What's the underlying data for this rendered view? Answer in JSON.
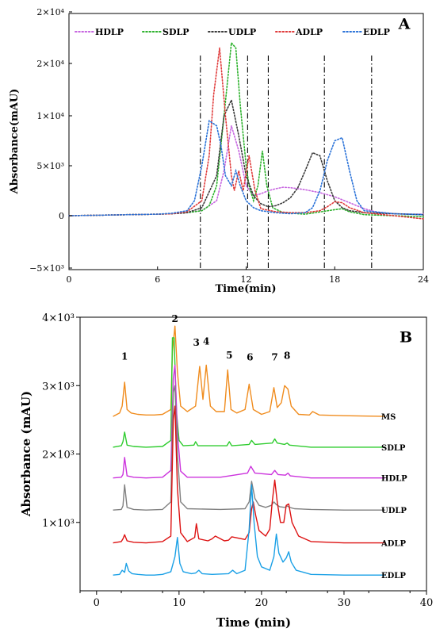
{
  "chart_data": [
    {
      "type": "line",
      "panel": "A",
      "xlabel": "Time(min)",
      "ylabel": "Absorbance(mAU)",
      "xlim": [
        0,
        24
      ],
      "ylim": [
        -5000,
        20000
      ],
      "x_ticks": [
        0,
        6,
        12,
        18,
        24
      ],
      "x_tick_labels": [
        "0",
        "6",
        "12",
        "18",
        "24"
      ],
      "y_ticks": [
        -5000,
        0,
        5000,
        10000,
        15000,
        20000
      ],
      "y_tick_labels": [
        "−5×10³",
        "0",
        "5×10³",
        "1×10⁴",
        "2×10⁴",
        "2×10⁴"
      ],
      "line_style": "dotted",
      "legend_position": "top-left",
      "cut_lines_x": [
        8.9,
        12.1,
        13.5,
        17.3,
        20.5
      ],
      "series": [
        {
          "name": "HDLP",
          "color": "#c766e0",
          "x": [
            0,
            2,
            4,
            6,
            7,
            8,
            9,
            10,
            10.5,
            11,
            11.5,
            12,
            12.5,
            13,
            13.5,
            14,
            14.5,
            15,
            16,
            17,
            18,
            19,
            20,
            21,
            22,
            23,
            24
          ],
          "y": [
            0,
            50,
            100,
            150,
            200,
            300,
            500,
            1500,
            4500,
            9000,
            6500,
            3000,
            2000,
            2200,
            2500,
            2700,
            2850,
            2800,
            2600,
            2300,
            1900,
            1300,
            700,
            300,
            200,
            150,
            150
          ]
        },
        {
          "name": "SDLP",
          "color": "#2db22d",
          "x": [
            0,
            2,
            4,
            6,
            7,
            8,
            9,
            9.5,
            10,
            10.5,
            11,
            11.3,
            11.6,
            12,
            12.2,
            12.5,
            12.8,
            13.1,
            13.4,
            13.8,
            14.5,
            16,
            18,
            18.5,
            19,
            20,
            22,
            24
          ],
          "y": [
            0,
            50,
            100,
            150,
            200,
            300,
            500,
            1000,
            3000,
            10000,
            17000,
            16500,
            11000,
            5000,
            3000,
            1500,
            3000,
            6500,
            3000,
            800,
            300,
            150,
            600,
            700,
            400,
            100,
            0,
            -100
          ]
        },
        {
          "name": "UDLP",
          "color": "#3a3a3a",
          "x": [
            0,
            2,
            4,
            6,
            7,
            8,
            9,
            10,
            10.5,
            11,
            11.5,
            12,
            12.5,
            13,
            13.5,
            14,
            14.5,
            15,
            15.5,
            16,
            16.5,
            17,
            17.5,
            18,
            18.5,
            19,
            20,
            22,
            24
          ],
          "y": [
            0,
            50,
            100,
            150,
            200,
            300,
            800,
            4000,
            10000,
            11500,
            8000,
            4000,
            2000,
            1200,
            900,
            1000,
            1300,
            1800,
            2800,
            4500,
            6300,
            6000,
            3500,
            1500,
            800,
            500,
            300,
            200,
            100
          ]
        },
        {
          "name": "ADLP",
          "color": "#e03a3a",
          "x": [
            0,
            2,
            4,
            6,
            7,
            8,
            9,
            9.5,
            9.8,
            10.2,
            10.6,
            11,
            11.2,
            11.5,
            11.8,
            12.2,
            12.6,
            13,
            14,
            15,
            16,
            17,
            17.5,
            18,
            18.5,
            19,
            20,
            22,
            24
          ],
          "y": [
            0,
            50,
            100,
            150,
            200,
            400,
            1500,
            6000,
            12000,
            16500,
            10000,
            4000,
            2500,
            4500,
            2500,
            6000,
            2500,
            700,
            400,
            300,
            300,
            500,
            900,
            1400,
            1300,
            800,
            300,
            0,
            -300
          ]
        },
        {
          "name": "EDLP",
          "color": "#2a72d8",
          "x": [
            0,
            2,
            4,
            6,
            7,
            8,
            8.5,
            9,
            9.5,
            10,
            10.3,
            10.6,
            11,
            11.3,
            11.6,
            12,
            12.5,
            13,
            14,
            15,
            16,
            16.5,
            17,
            17.5,
            18,
            18.5,
            19,
            19.5,
            20,
            22,
            24
          ],
          "y": [
            0,
            50,
            100,
            150,
            250,
            500,
            1500,
            5000,
            9500,
            9000,
            7000,
            4000,
            3000,
            4500,
            3000,
            1500,
            800,
            500,
            300,
            200,
            300,
            800,
            2500,
            5500,
            7500,
            7800,
            4500,
            1500,
            500,
            200,
            100
          ]
        }
      ]
    },
    {
      "type": "line",
      "panel": "B",
      "xlabel": "Time (min)",
      "ylabel": "Absorbance (mAU)",
      "xlim": [
        -2,
        40
      ],
      "ylim": [
        0,
        4000
      ],
      "x_ticks": [
        0,
        10,
        20,
        30,
        40
      ],
      "x_tick_labels": [
        "0",
        "10",
        "20",
        "30",
        "40"
      ],
      "y_ticks": [
        1000,
        2000,
        3000,
        4000
      ],
      "y_tick_labels": [
        "1×10³",
        "2×10³",
        "3×10³",
        "4×10³"
      ],
      "line_style": "solid",
      "peak_labels": [
        {
          "label": "1",
          "x": 3.4,
          "y": 3380
        },
        {
          "label": "2",
          "x": 9.5,
          "y": 3930
        },
        {
          "label": "3",
          "x": 12.1,
          "y": 3580
        },
        {
          "label": "4",
          "x": 13.3,
          "y": 3600
        },
        {
          "label": "5",
          "x": 16.1,
          "y": 3400
        },
        {
          "label": "6",
          "x": 18.6,
          "y": 3370
        },
        {
          "label": "7",
          "x": 21.6,
          "y": 3370
        },
        {
          "label": "8",
          "x": 23.1,
          "y": 3390
        }
      ],
      "series": [
        {
          "name": "MS",
          "color": "#f08c1e",
          "x": [
            2,
            2.8,
            3.1,
            3.4,
            3.7,
            4.2,
            5,
            6,
            7,
            8,
            9,
            9.2,
            9.5,
            9.8,
            10.2,
            11,
            12,
            12.5,
            12.9,
            13.3,
            13.8,
            14.5,
            15.5,
            15.9,
            16.3,
            17,
            18,
            18.5,
            19,
            20,
            21,
            21.5,
            21.9,
            22.4,
            22.8,
            23.2,
            23.6,
            24.5,
            25.8,
            26.2,
            27,
            30,
            35
          ],
          "y": [
            2550,
            2600,
            2700,
            3050,
            2650,
            2600,
            2580,
            2570,
            2570,
            2580,
            2650,
            3500,
            3870,
            3200,
            2700,
            2620,
            2700,
            3280,
            2800,
            3300,
            2700,
            2620,
            2620,
            3230,
            2650,
            2600,
            2650,
            3020,
            2650,
            2580,
            2620,
            2970,
            2680,
            2750,
            3000,
            2950,
            2700,
            2580,
            2570,
            2620,
            2570,
            2560,
            2550
          ]
        },
        {
          "name": "SDLP",
          "color": "#2ecc2e",
          "x": [
            2,
            3,
            3.2,
            3.4,
            3.7,
            4.5,
            6,
            8,
            9,
            9.2,
            9.4,
            9.7,
            10,
            10.5,
            11.8,
            12,
            12.3,
            15.8,
            16.1,
            16.4,
            18.5,
            18.8,
            19.2,
            21.3,
            21.6,
            21.9,
            22.8,
            23.1,
            23.4,
            26,
            30,
            35
          ],
          "y": [
            2100,
            2120,
            2180,
            2320,
            2130,
            2110,
            2100,
            2110,
            2200,
            3700,
            3700,
            2600,
            2200,
            2120,
            2130,
            2180,
            2120,
            2120,
            2180,
            2120,
            2140,
            2200,
            2140,
            2160,
            2220,
            2160,
            2140,
            2160,
            2130,
            2100,
            2100,
            2100
          ]
        },
        {
          "name": "HDLP",
          "color": "#cc33dd",
          "x": [
            2,
            3,
            3.2,
            3.4,
            3.7,
            4.5,
            6,
            8,
            9,
            9.3,
            9.5,
            9.8,
            10.2,
            11,
            15,
            18.3,
            18.7,
            19.2,
            21.2,
            21.6,
            22,
            22.9,
            23.2,
            23.5,
            26,
            30,
            35
          ],
          "y": [
            1650,
            1660,
            1700,
            1950,
            1680,
            1660,
            1650,
            1660,
            1760,
            3100,
            3300,
            2300,
            1750,
            1660,
            1660,
            1720,
            1820,
            1720,
            1700,
            1760,
            1700,
            1690,
            1720,
            1680,
            1650,
            1650,
            1650
          ]
        },
        {
          "name": "UDLP",
          "color": "#808080",
          "x": [
            2,
            3,
            3.2,
            3.4,
            3.7,
            4.5,
            6,
            8,
            9,
            9.3,
            9.5,
            9.8,
            10.2,
            11,
            15,
            18,
            18.5,
            18.8,
            19.2,
            19.7,
            20.5,
            21.2,
            21.5,
            21.8,
            22.2,
            22.8,
            23.1,
            23.4,
            24,
            26,
            30,
            35
          ],
          "y": [
            1180,
            1190,
            1240,
            1550,
            1220,
            1190,
            1180,
            1190,
            1300,
            2900,
            3000,
            2000,
            1300,
            1200,
            1190,
            1200,
            1300,
            1600,
            1350,
            1250,
            1220,
            1250,
            1300,
            1260,
            1230,
            1220,
            1240,
            1220,
            1200,
            1190,
            1180,
            1180
          ]
        },
        {
          "name": "ADLP",
          "color": "#dd1111",
          "x": [
            2,
            3,
            3.2,
            3.4,
            3.7,
            4.5,
            6,
            8,
            9,
            9.3,
            9.5,
            9.8,
            10.2,
            11,
            11.9,
            12.1,
            12.4,
            13.5,
            14,
            14.4,
            15.5,
            16,
            16.4,
            18,
            18.5,
            18.8,
            19,
            19.3,
            19.7,
            20.5,
            21,
            21.3,
            21.6,
            21.9,
            22.3,
            22.7,
            23,
            23.3,
            23.7,
            24.5,
            26,
            30,
            35
          ],
          "y": [
            700,
            720,
            760,
            820,
            730,
            710,
            700,
            720,
            800,
            2500,
            2700,
            1500,
            850,
            720,
            780,
            980,
            760,
            730,
            760,
            800,
            730,
            740,
            790,
            750,
            850,
            1200,
            1300,
            1100,
            880,
            800,
            900,
            1300,
            1620,
            1300,
            1000,
            1000,
            1250,
            1270,
            1000,
            800,
            720,
            700,
            700
          ]
        },
        {
          "name": "EDLP",
          "color": "#1aa0e6",
          "x": [
            2,
            2.8,
            3.1,
            3.4,
            3.6,
            3.9,
            4.3,
            5,
            6,
            7,
            8,
            9,
            9.5,
            9.8,
            10.1,
            10.5,
            11.5,
            12,
            12.4,
            12.8,
            14,
            16,
            16.5,
            17,
            18,
            18.5,
            18.8,
            19.1,
            19.5,
            20,
            21,
            21.5,
            21.8,
            22.1,
            22.6,
            23,
            23.3,
            23.6,
            24.2,
            26,
            30,
            35
          ],
          "y": [
            230,
            240,
            300,
            270,
            400,
            290,
            250,
            240,
            230,
            230,
            240,
            280,
            500,
            780,
            400,
            280,
            250,
            260,
            300,
            250,
            240,
            250,
            300,
            250,
            300,
            900,
            1550,
            1000,
            500,
            350,
            300,
            500,
            830,
            550,
            420,
            480,
            570,
            420,
            300,
            240,
            230,
            230
          ]
        }
      ]
    }
  ]
}
